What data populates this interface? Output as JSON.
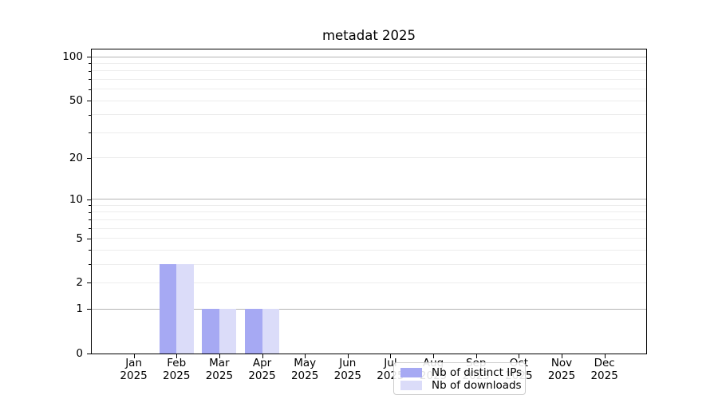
{
  "title": "metadat 2025",
  "chart_data": {
    "type": "bar",
    "title": "metadat 2025",
    "categories": [
      "Jan",
      "Feb",
      "Mar",
      "Apr",
      "May",
      "Jun",
      "Jul",
      "Aug",
      "Sep",
      "Oct",
      "Nov",
      "Dec"
    ],
    "category_year": "2025",
    "series": [
      {
        "name": "Nb of distinct IPs",
        "color": "#a6a9f3",
        "values": [
          0,
          3,
          1,
          1,
          0,
          0,
          0,
          0,
          0,
          0,
          0,
          0
        ]
      },
      {
        "name": "Nb of downloads",
        "color": "#dbdcf9",
        "values": [
          0,
          3,
          1,
          1,
          0,
          0,
          0,
          0,
          0,
          0,
          0,
          0
        ]
      }
    ],
    "yscale": "log1p",
    "ylim": [
      0,
      100
    ],
    "yticks": [
      0,
      1,
      2,
      5,
      10,
      20,
      50,
      100
    ],
    "major_gridlines": [
      1,
      10,
      100
    ],
    "minor_gridlines": [
      2,
      3,
      4,
      5,
      6,
      7,
      8,
      9,
      20,
      30,
      40,
      50,
      60,
      70,
      80,
      90
    ],
    "grid": true,
    "legend_position": "lower center"
  },
  "colors": {
    "bar_distinct_ips": "#a6a9f3",
    "bar_downloads": "#dbdcf9",
    "major_grid": "#b4b4b4",
    "minor_grid": "#ededed",
    "axis": "#000000",
    "legend_border": "#cccccc"
  }
}
